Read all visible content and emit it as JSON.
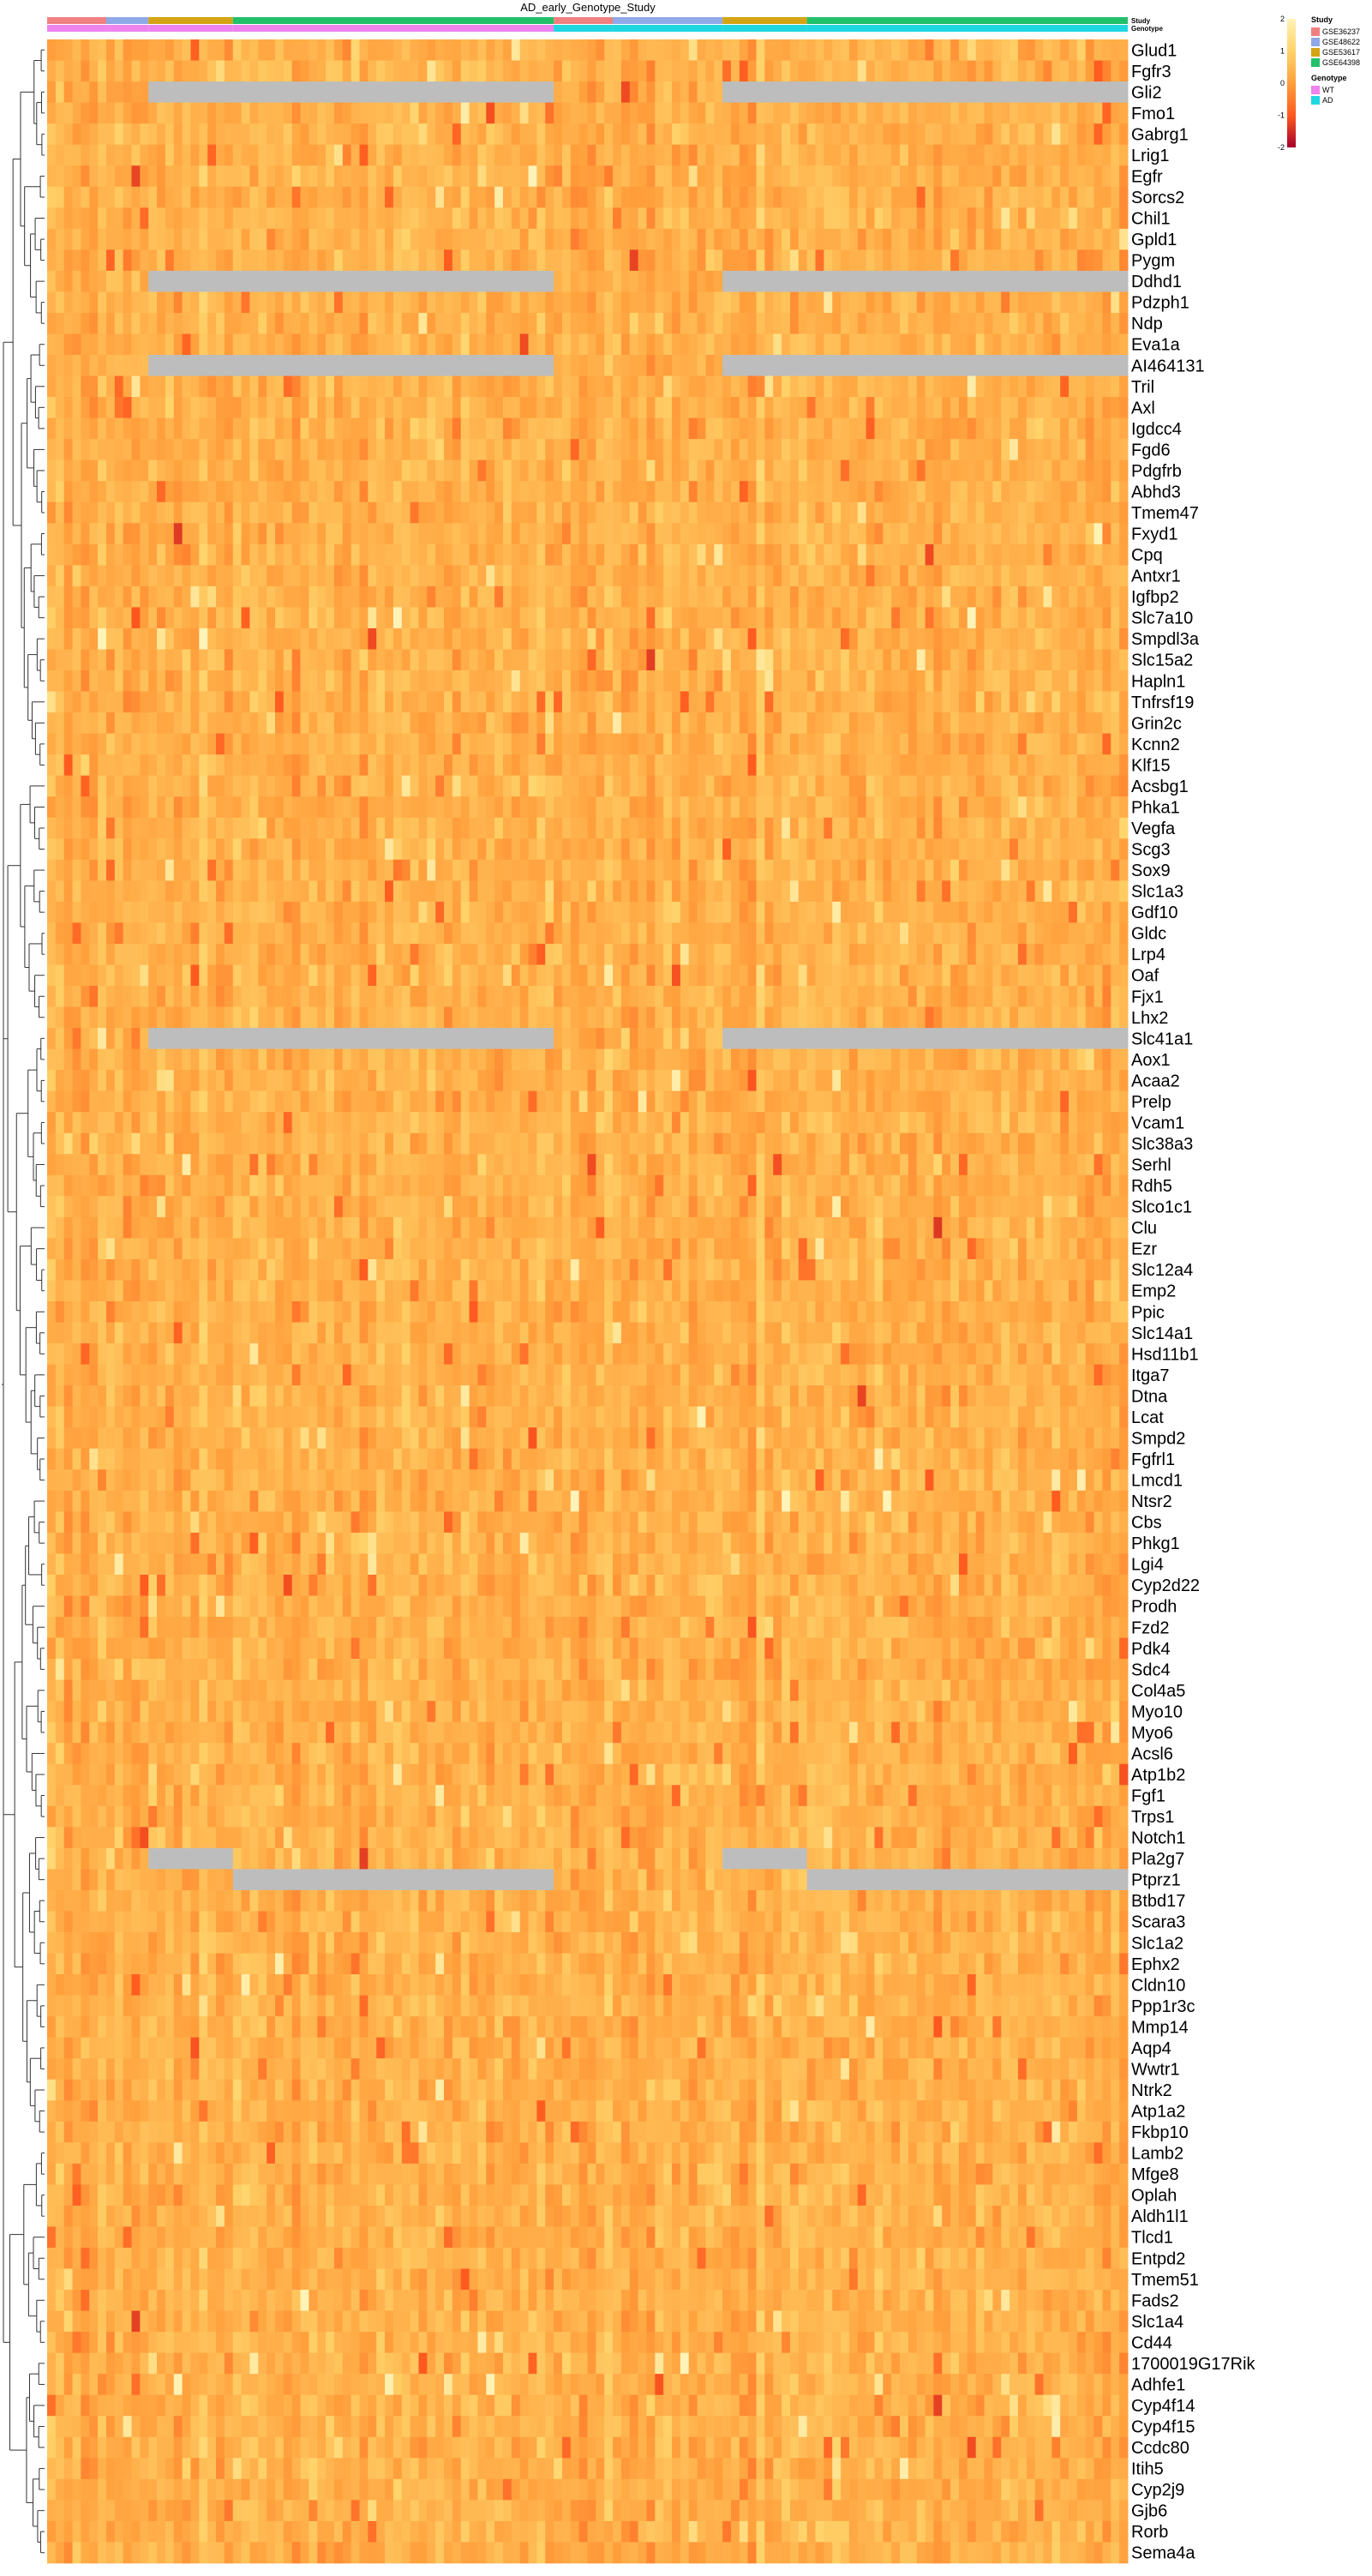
{
  "chart_data": {
    "type": "heatmap",
    "title": "AD_early_Genotype_Study",
    "annotation_tracks": [
      "Study",
      "Genotype"
    ],
    "column_groups": [
      {
        "study": "GSE36237",
        "genotype": "WT",
        "n": 7
      },
      {
        "study": "GSE48622",
        "genotype": "WT",
        "n": 5
      },
      {
        "study": "GSE53617",
        "genotype": "WT",
        "n": 10
      },
      {
        "study": "GSE64398",
        "genotype": "WT",
        "n": 38
      },
      {
        "study": "GSE36237",
        "genotype": "AD",
        "n": 7
      },
      {
        "study": "GSE48622",
        "genotype": "AD",
        "n": 13
      },
      {
        "study": "GSE53617",
        "genotype": "AD",
        "n": 10
      },
      {
        "study": "GSE64398",
        "genotype": "AD",
        "n": 38
      }
    ],
    "rows": [
      "Glud1",
      "Fgfr3",
      "Gli2",
      "Fmo1",
      "Gabrg1",
      "Lrig1",
      "Egfr",
      "Sorcs2",
      "Chil1",
      "Gpld1",
      "Pygm",
      "Ddhd1",
      "Pdzph1",
      "Ndp",
      "Eva1a",
      "AI464131",
      "Tril",
      "Axl",
      "Igdcc4",
      "Fgd6",
      "Pdgfrb",
      "Abhd3",
      "Tmem47",
      "Fxyd1",
      "Cpq",
      "Antxr1",
      "Igfbp2",
      "Slc7a10",
      "Smpdl3a",
      "Slc15a2",
      "Hapln1",
      "Tnfrsf19",
      "Grin2c",
      "Kcnn2",
      "Klf15",
      "Acsbg1",
      "Phka1",
      "Vegfa",
      "Scg3",
      "Sox9",
      "Slc1a3",
      "Gdf10",
      "Gldc",
      "Lrp4",
      "Oaf",
      "Fjx1",
      "Lhx2",
      "Slc41a1",
      "Aox1",
      "Acaa2",
      "Prelp",
      "Vcam1",
      "Slc38a3",
      "Serhl",
      "Rdh5",
      "Slco1c1",
      "Clu",
      "Ezr",
      "Slc12a4",
      "Emp2",
      "Ppic",
      "Slc14a1",
      "Hsd11b1",
      "Itga7",
      "Dtna",
      "Lcat",
      "Smpd2",
      "Fgfrl1",
      "Lmcd1",
      "Ntsr2",
      "Cbs",
      "Phkg1",
      "Lgi4",
      "Cyp2d22",
      "Prodh",
      "Fzd2",
      "Pdk4",
      "Sdc4",
      "Col4a5",
      "Myo10",
      "Myo6",
      "Acsl6",
      "Atp1b2",
      "Fgf1",
      "Trps1",
      "Notch1",
      "Pla2g7",
      "Ptprz1",
      "Btbd17",
      "Scara3",
      "Slc1a2",
      "Ephx2",
      "Cldn10",
      "Ppp1r3c",
      "Mmp14",
      "Aqp4",
      "Wwtr1",
      "Ntrk2",
      "Atp1a2",
      "Fkbp10",
      "Lamb2",
      "Mfge8",
      "Oplah",
      "Aldh1l1",
      "Tlcd1",
      "Entpd2",
      "Tmem51",
      "Fads2",
      "Slc1a4",
      "Cd44",
      "1700019G17Rik",
      "Adhfe1",
      "Cyp4f14",
      "Cyp4f15",
      "Ccdc80",
      "Itih5",
      "Cyp2j9",
      "Gjb6",
      "Rorb",
      "Sema4a"
    ],
    "missing": [
      {
        "row": "Gli2",
        "studies": [
          "GSE53617",
          "GSE64398"
        ]
      },
      {
        "row": "Ddhd1",
        "studies": [
          "GSE53617",
          "GSE64398"
        ]
      },
      {
        "row": "AI464131",
        "studies": [
          "GSE53617",
          "GSE64398"
        ]
      },
      {
        "row": "Slc41a1",
        "studies": [
          "GSE53617",
          "GSE64398"
        ]
      },
      {
        "row": "Pla2g7",
        "studies": [
          "GSE53617"
        ]
      },
      {
        "row": "Ptprz1",
        "studies": [
          "GSE64398"
        ]
      }
    ],
    "color_scale": {
      "min": -2,
      "max": 2,
      "ticks": [
        2,
        1,
        0,
        -1,
        -2
      ],
      "colors": [
        "#a5002a",
        "#ff5a1f",
        "#ff9f3c",
        "#ffd36a",
        "#fff3b8"
      ]
    },
    "na_color": "#bdbdbd",
    "legend": {
      "position": "top-right",
      "study": {
        "title": "Study",
        "items": [
          {
            "label": "GSE36237",
            "color": "#f08080"
          },
          {
            "label": "GSE48622",
            "color": "#8fa8e8"
          },
          {
            "label": "GSE53617",
            "color": "#d4a414"
          },
          {
            "label": "GSE64398",
            "color": "#22c06a"
          }
        ]
      },
      "genotype": {
        "title": "Genotype",
        "items": [
          {
            "label": "WT",
            "color": "#ee82ee"
          },
          {
            "label": "AD",
            "color": "#1fd7e0"
          }
        ]
      }
    }
  }
}
